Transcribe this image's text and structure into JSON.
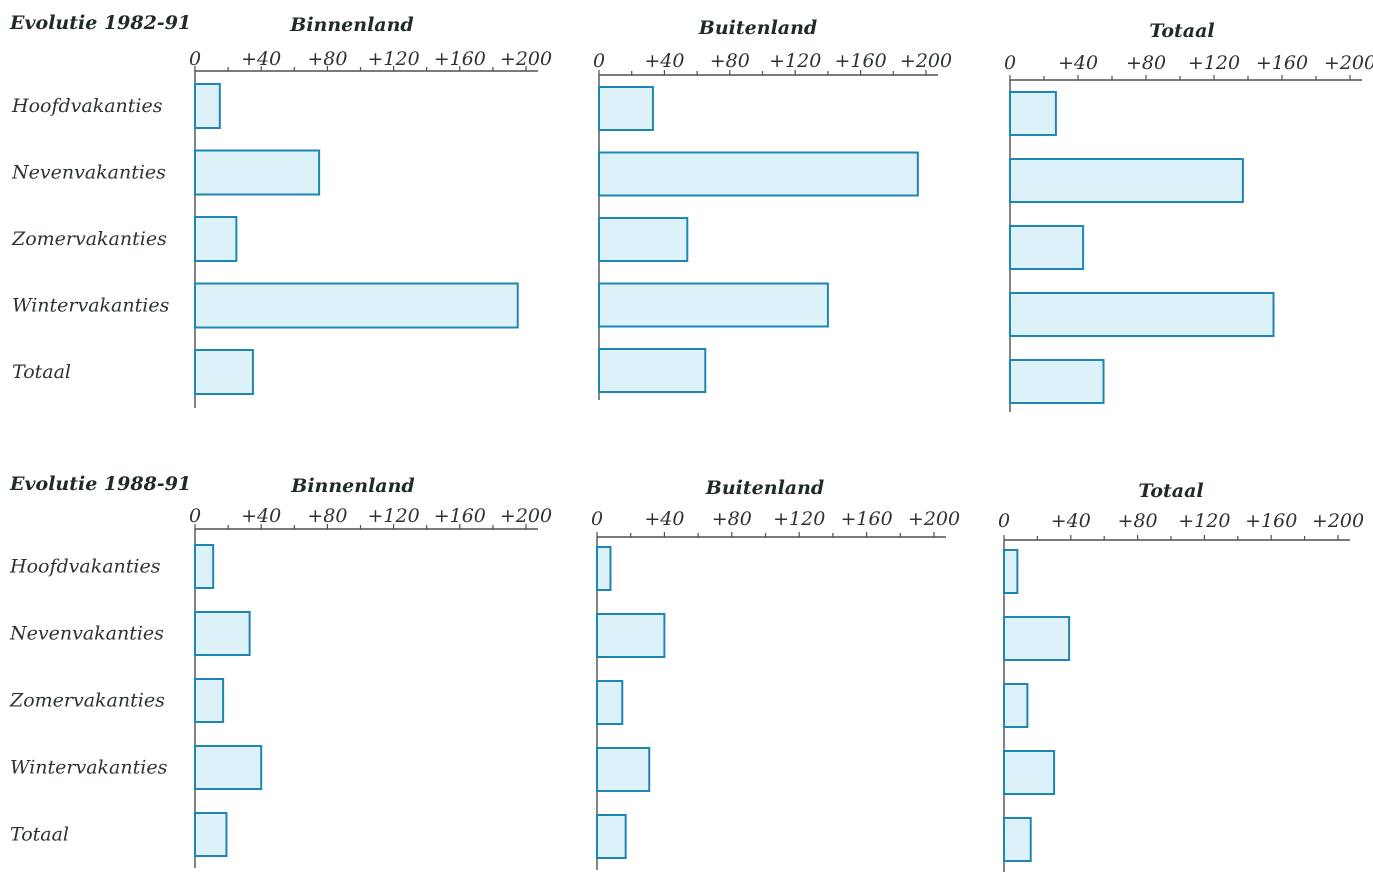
{
  "colors": {
    "bar_fill": "#ddf1f9",
    "bar_stroke": "#1d86b5",
    "axis": "#4a5050",
    "text": "#2b3333"
  },
  "sections": [
    {
      "title": "Evolutie 1982-91"
    },
    {
      "title": "Evolutie 1988-91"
    }
  ],
  "chart_data": [
    {
      "type": "bar",
      "orientation": "horizontal",
      "section": "Evolutie 1982-91",
      "title": "Binnenland",
      "categories": [
        "Hoofdvakanties",
        "Nevenvakanties",
        "Zomervakanties",
        "Wintervakanties",
        "Totaal"
      ],
      "values": [
        15,
        75,
        25,
        195,
        35
      ],
      "xlim": [
        0,
        200
      ],
      "ticks": [
        "0",
        "+40",
        "+80",
        "+120",
        "+160",
        "+200"
      ],
      "tick_values": [
        0,
        40,
        80,
        120,
        160,
        200
      ]
    },
    {
      "type": "bar",
      "orientation": "horizontal",
      "section": "Evolutie 1982-91",
      "title": "Buitenland",
      "categories": [
        "Hoofdvakanties",
        "Nevenvakanties",
        "Zomervakanties",
        "Wintervakanties",
        "Totaal"
      ],
      "values": [
        33,
        195,
        54,
        140,
        65
      ],
      "xlim": [
        0,
        200
      ],
      "ticks": [
        "0",
        "+40",
        "+80",
        "+120",
        "+160",
        "+200"
      ],
      "tick_values": [
        0,
        40,
        80,
        120,
        160,
        200
      ]
    },
    {
      "type": "bar",
      "orientation": "horizontal",
      "section": "Evolutie 1982-91",
      "title": "Totaal",
      "categories": [
        "Hoofdvakanties",
        "Nevenvakanties",
        "Zomervakanties",
        "Wintervakanties",
        "Totaal"
      ],
      "values": [
        27,
        137,
        43,
        155,
        55
      ],
      "xlim": [
        0,
        200
      ],
      "ticks": [
        "0",
        "+40",
        "+80",
        "+120",
        "+160",
        "+200"
      ],
      "tick_values": [
        0,
        40,
        80,
        120,
        160,
        200
      ]
    },
    {
      "type": "bar",
      "orientation": "horizontal",
      "section": "Evolutie 1988-91",
      "title": "Binnenland",
      "categories": [
        "Hoofdvakanties",
        "Nevenvakanties",
        "Zomervakanties",
        "Wintervakanties",
        "Totaal"
      ],
      "values": [
        11,
        33,
        17,
        40,
        19
      ],
      "xlim": [
        0,
        200
      ],
      "ticks": [
        "0",
        "+40",
        "+80",
        "+120",
        "+160",
        "+200"
      ],
      "tick_values": [
        0,
        40,
        80,
        120,
        160,
        200
      ]
    },
    {
      "type": "bar",
      "orientation": "horizontal",
      "section": "Evolutie 1988-91",
      "title": "Buitenland",
      "categories": [
        "Hoofdvakanties",
        "Nevenvakanties",
        "Zomervakanties",
        "Wintervakanties",
        "Totaal"
      ],
      "values": [
        8,
        40,
        15,
        31,
        17
      ],
      "xlim": [
        0,
        200
      ],
      "ticks": [
        "0",
        "+40",
        "+80",
        "+120",
        "+160",
        "+200"
      ],
      "tick_values": [
        0,
        40,
        80,
        120,
        160,
        200
      ]
    },
    {
      "type": "bar",
      "orientation": "horizontal",
      "section": "Evolutie 1988-91",
      "title": "Totaal",
      "categories": [
        "Hoofdvakanties",
        "Nevenvakanties",
        "Zomervakanties",
        "Wintervakanties",
        "Totaal"
      ],
      "values": [
        8,
        39,
        14,
        30,
        16
      ],
      "xlim": [
        0,
        200
      ],
      "ticks": [
        "0",
        "+40",
        "+80",
        "+120",
        "+160",
        "+200"
      ],
      "tick_values": [
        0,
        40,
        80,
        120,
        160,
        200
      ]
    }
  ]
}
